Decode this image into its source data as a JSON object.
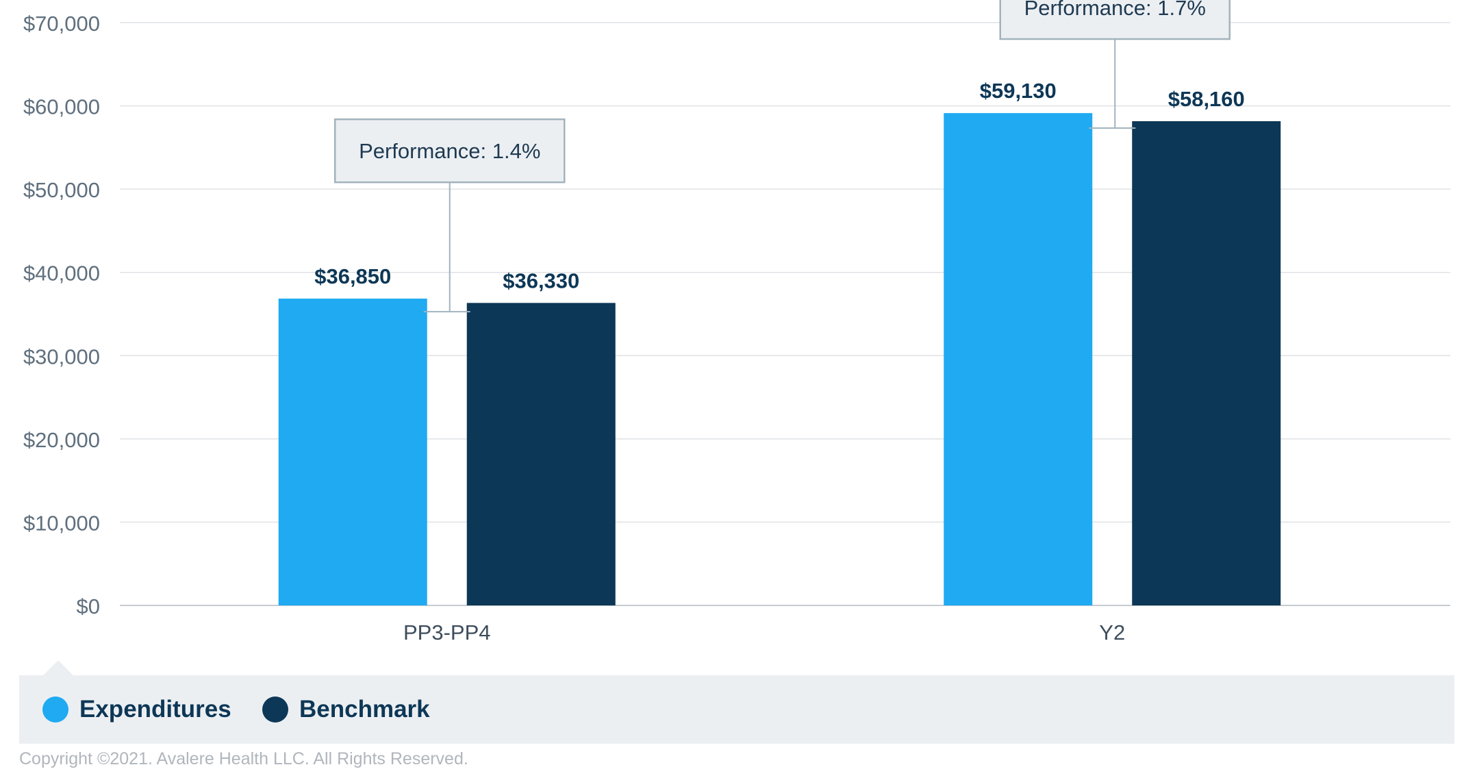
{
  "chart_data": {
    "type": "bar",
    "categories": [
      "PP3-PP4",
      "Y2"
    ],
    "series": [
      {
        "name": "Expenditures",
        "color": "#1faaf2",
        "values": [
          36850,
          59130
        ],
        "labels": [
          "$36,850",
          "$59,130"
        ]
      },
      {
        "name": "Benchmark",
        "color": "#0d3756",
        "values": [
          36330,
          58160
        ],
        "labels": [
          "$36,330",
          "$58,160"
        ]
      }
    ],
    "yticks": [
      0,
      10000,
      20000,
      30000,
      40000,
      50000,
      60000,
      70000
    ],
    "ytick_labels": [
      "$0",
      "$10,000",
      "$20,000",
      "$30,000",
      "$40,000",
      "$50,000",
      "$60,000",
      "$70,000"
    ],
    "ylim": [
      0,
      70000
    ],
    "grid": true,
    "annotations": [
      {
        "category": "PP3-PP4",
        "text": "Performance: 1.4%"
      },
      {
        "category": "Y2",
        "text": "Performance: 1.7%"
      }
    ],
    "legend_position": "bottom-left"
  },
  "legend": {
    "items": [
      {
        "label": "Expenditures",
        "color": "#1faaf2"
      },
      {
        "label": "Benchmark",
        "color": "#0d3756"
      }
    ]
  },
  "footer": {
    "copyright": "Copyright ©2021. Avalere Health LLC. All Rights Reserved."
  }
}
